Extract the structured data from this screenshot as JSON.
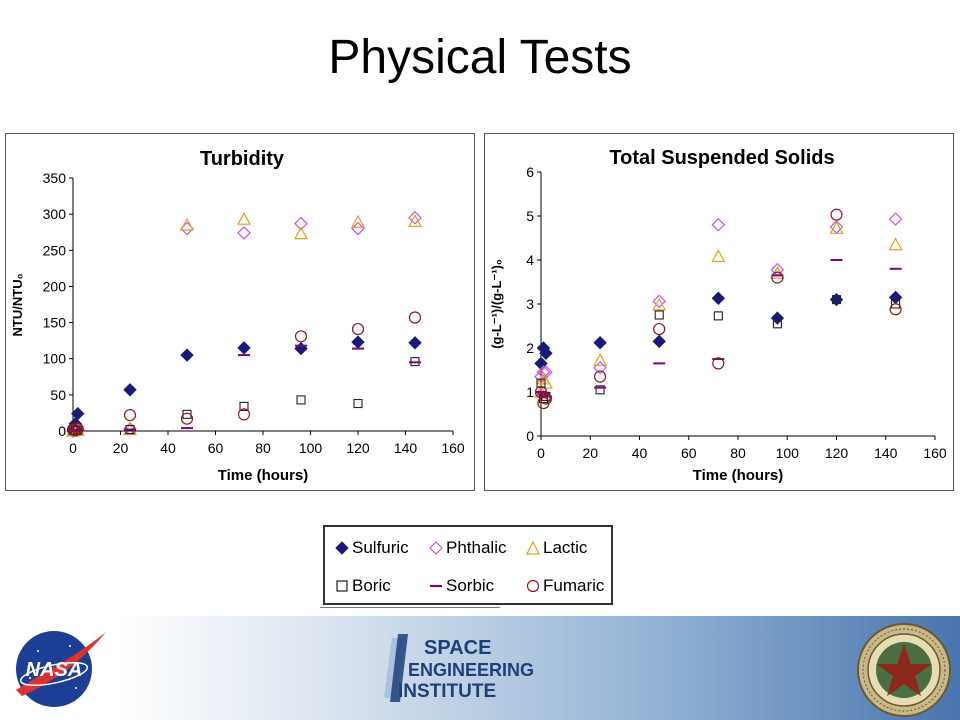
{
  "slide": {
    "title": "Physical Tests"
  },
  "legend": [
    {
      "name": "Sulfuric",
      "marker": "diamond-filled",
      "color": "#1a1a7a"
    },
    {
      "name": "Phthalic",
      "marker": "diamond-open",
      "color": "#d050d8"
    },
    {
      "name": "Lactic",
      "marker": "triangle-open",
      "color": "#e0a020"
    },
    {
      "name": "Boric",
      "marker": "square-open",
      "color": "#222222"
    },
    {
      "name": "Sorbic",
      "marker": "dash",
      "color": "#800080"
    },
    {
      "name": "Fumaric",
      "marker": "circle-open",
      "color": "#8b1a1a"
    }
  ],
  "logos": {
    "nasa": "NASA",
    "sei": [
      "SPACE",
      "ENGINEERING",
      "INSTITUTE"
    ],
    "seal": "TEXAS A&M UNIVERSITY"
  },
  "chart_data": [
    {
      "type": "scatter",
      "title": "Turbidity",
      "xlabel": "Time (hours)",
      "ylabel": "NTU/NTU₀",
      "xlim": [
        0,
        160
      ],
      "ylim": [
        0,
        350
      ],
      "xticks": [
        0,
        20,
        40,
        60,
        80,
        100,
        120,
        140,
        160
      ],
      "yticks": [
        0,
        50,
        100,
        150,
        200,
        250,
        300,
        350
      ],
      "grid": false,
      "series": [
        {
          "name": "Sulfuric",
          "x": [
            0,
            1,
            2,
            24,
            48,
            72,
            96,
            120,
            144
          ],
          "y": [
            0,
            10,
            24,
            57,
            105,
            115,
            114,
            123,
            122
          ]
        },
        {
          "name": "Phthalic",
          "x": [
            0,
            1,
            2,
            24,
            48,
            72,
            96,
            120,
            144
          ],
          "y": [
            0,
            1,
            2,
            3,
            280,
            274,
            287,
            280,
            295
          ]
        },
        {
          "name": "Lactic",
          "x": [
            0,
            1,
            2,
            24,
            48,
            72,
            96,
            120,
            144
          ],
          "y": [
            0,
            1,
            1,
            2,
            285,
            293,
            273,
            289,
            290
          ]
        },
        {
          "name": "Boric",
          "x": [
            0,
            1,
            2,
            24,
            48,
            72,
            96,
            120,
            144
          ],
          "y": [
            1,
            1,
            1,
            2,
            23,
            34,
            43,
            38,
            96
          ]
        },
        {
          "name": "Sorbic",
          "x": [
            0,
            1,
            2,
            24,
            48,
            72,
            96,
            120,
            144
          ],
          "y": [
            0,
            1,
            1,
            2,
            4,
            105,
            118,
            114,
            95
          ]
        },
        {
          "name": "Fumaric",
          "x": [
            0,
            1,
            2,
            24,
            48,
            72,
            96,
            120,
            144
          ],
          "y": [
            2,
            1,
            3,
            22,
            17,
            23,
            131,
            141,
            157
          ]
        }
      ]
    },
    {
      "type": "scatter",
      "title": "Total Suspended Solids",
      "xlabel": "Time (hours)",
      "ylabel": "(g-L⁻¹)/(g-L⁻¹)₀",
      "xlim": [
        0,
        160
      ],
      "ylim": [
        0,
        6
      ],
      "xticks": [
        0,
        20,
        40,
        60,
        80,
        100,
        120,
        140,
        160
      ],
      "yticks": [
        0,
        1,
        2,
        3,
        4,
        5,
        6
      ],
      "grid": false,
      "series": [
        {
          "name": "Sulfuric",
          "x": [
            0,
            1,
            2,
            24,
            48,
            72,
            96,
            120,
            144
          ],
          "y": [
            1.65,
            2.0,
            1.88,
            2.12,
            2.15,
            3.13,
            2.68,
            3.1,
            3.15
          ]
        },
        {
          "name": "Phthalic",
          "x": [
            0,
            1,
            2,
            24,
            48,
            72,
            96,
            120,
            144
          ],
          "y": [
            1.35,
            1.45,
            1.45,
            1.55,
            3.06,
            4.8,
            3.78,
            4.75,
            4.93
          ]
        },
        {
          "name": "Lactic",
          "x": [
            0,
            1,
            2,
            24,
            48,
            72,
            96,
            120,
            144
          ],
          "y": [
            1.0,
            1.3,
            1.2,
            1.72,
            2.98,
            4.08,
            3.7,
            4.72,
            4.35
          ]
        },
        {
          "name": "Boric",
          "x": [
            0,
            1,
            2,
            24,
            48,
            72,
            96,
            120,
            144
          ],
          "y": [
            1.2,
            0.85,
            0.9,
            1.05,
            2.75,
            2.73,
            2.55,
            3.1,
            3.0
          ]
        },
        {
          "name": "Sorbic",
          "x": [
            0,
            1,
            2,
            24,
            48,
            72,
            96,
            120,
            144
          ],
          "y": [
            1.0,
            0.95,
            0.9,
            1.1,
            1.65,
            1.75,
            3.65,
            4.0,
            3.8
          ]
        },
        {
          "name": "Fumaric",
          "x": [
            0,
            1,
            2,
            24,
            48,
            72,
            96,
            120,
            144
          ],
          "y": [
            1.0,
            0.75,
            0.85,
            1.35,
            2.43,
            1.65,
            3.6,
            5.03,
            2.88
          ]
        }
      ]
    }
  ]
}
